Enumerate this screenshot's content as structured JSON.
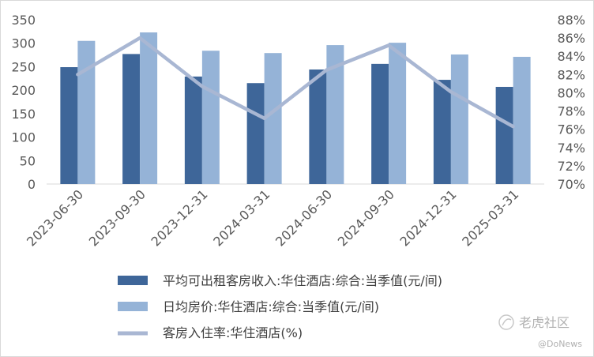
{
  "chart_data": {
    "type": "bar",
    "categories": [
      "2023-06-30",
      "2023-09-30",
      "2023-12-31",
      "2024-03-31",
      "2024-06-30",
      "2024-09-30",
      "2024-12-31",
      "2025-03-31"
    ],
    "series": [
      {
        "name": "平均可出租客房收入:华住酒店:综合:当季值(元/间)",
        "type": "bar",
        "axis": "left",
        "color": "#3e6699",
        "values": [
          249,
          277,
          229,
          215,
          244,
          256,
          222,
          207
        ]
      },
      {
        "name": "日均房价:华住酒店:综合:当季值(元/间)",
        "type": "bar",
        "axis": "left",
        "color": "#95b3d7",
        "values": [
          305,
          323,
          284,
          279,
          296,
          301,
          276,
          271
        ]
      },
      {
        "name": "客房入住率:华住酒店(%)",
        "type": "line",
        "axis": "right",
        "color": "#a9b7d3",
        "values": [
          82.0,
          86.0,
          80.7,
          77.2,
          82.5,
          85.2,
          80.1,
          76.3
        ]
      }
    ],
    "y_left": {
      "min": 0,
      "max": 350,
      "step": 50,
      "ticks": [
        "0",
        "50",
        "100",
        "150",
        "200",
        "250",
        "300",
        "350"
      ]
    },
    "y_right": {
      "min": 70,
      "max": 88,
      "step": 2,
      "ticks": [
        "70%",
        "72%",
        "74%",
        "76%",
        "78%",
        "80%",
        "82%",
        "84%",
        "86%",
        "88%"
      ]
    },
    "grid": false,
    "legend_position": "bottom"
  },
  "watermark": {
    "brand": "老虎社区",
    "handle": "@DoNews"
  }
}
